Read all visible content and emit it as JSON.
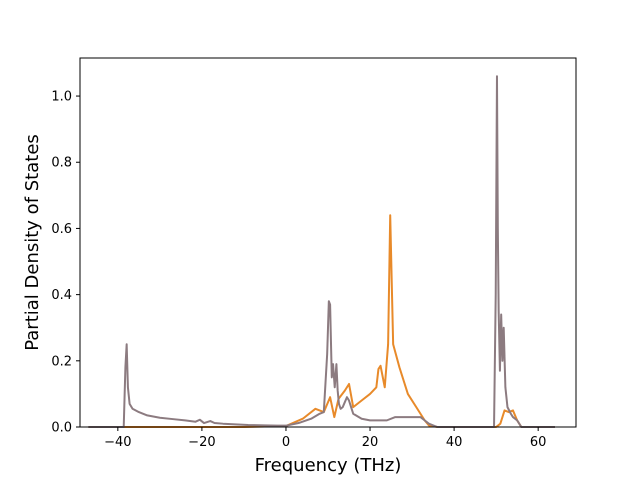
{
  "chart_data": {
    "type": "line",
    "title": "",
    "xlabel": "Frequency (THz)",
    "ylabel": "Partial Density of States",
    "xlim": [
      -49,
      69
    ],
    "ylim": [
      0.0,
      1.115
    ],
    "xticks": [
      -40,
      -20,
      0,
      20,
      40,
      60
    ],
    "yticks": [
      0.0,
      0.2,
      0.4,
      0.6,
      0.8,
      1.0
    ],
    "xtick_labels": [
      "−40",
      "−20",
      "0",
      "20",
      "40",
      "60"
    ],
    "ytick_labels": [
      "0.0",
      "0.2",
      "0.4",
      "0.6",
      "0.8",
      "1.0"
    ],
    "grid": false,
    "legend": null,
    "series": [
      {
        "color": "#e88a2a",
        "x": [
          -47,
          -38,
          -30,
          -20,
          -10,
          0,
          4,
          7,
          9,
          10.5,
          11.5,
          12.5,
          14,
          15,
          16,
          18,
          20,
          21.5,
          22,
          22.5,
          23.5,
          24.3,
          24.8,
          25.5,
          27,
          29,
          31,
          33,
          34,
          36,
          40,
          45,
          50,
          51,
          52,
          53,
          54,
          55,
          56,
          64
        ],
        "y": [
          0,
          0,
          0,
          0,
          0,
          0.003,
          0.025,
          0.055,
          0.045,
          0.09,
          0.03,
          0.085,
          0.11,
          0.13,
          0.06,
          0.08,
          0.1,
          0.12,
          0.175,
          0.185,
          0.12,
          0.25,
          0.64,
          0.25,
          0.18,
          0.1,
          0.06,
          0.02,
          0.005,
          0.0,
          0.0,
          0.0,
          0.0,
          0.01,
          0.05,
          0.045,
          0.05,
          0.02,
          0.0,
          0.0
        ]
      },
      {
        "color": "#8c7b80",
        "x": [
          -47,
          -38.6,
          -38.2,
          -37.9,
          -37.6,
          -37.2,
          -36.5,
          -35,
          -33,
          -30,
          -27,
          -24,
          -21.5,
          -20.5,
          -19.5,
          -18,
          -17,
          -15,
          -12,
          -9,
          -5,
          -2,
          0,
          3,
          6,
          8,
          9,
          9.8,
          10.2,
          10.5,
          10.9,
          11.2,
          11.6,
          12,
          12.3,
          12.6,
          13,
          13.5,
          14,
          14.5,
          15,
          15.5,
          16,
          18,
          20,
          22,
          24,
          26,
          28,
          30,
          32,
          33,
          34,
          36,
          40,
          45,
          49.5,
          49.9,
          50.2,
          50.4,
          50.6,
          50.9,
          51.2,
          51.5,
          51.8,
          52.2,
          52.7,
          53.5,
          54,
          55,
          56,
          64
        ],
        "y": [
          0,
          0,
          0.18,
          0.25,
          0.12,
          0.07,
          0.055,
          0.045,
          0.035,
          0.028,
          0.024,
          0.02,
          0.016,
          0.022,
          0.012,
          0.018,
          0.012,
          0.01,
          0.008,
          0.006,
          0.005,
          0.004,
          0.004,
          0.012,
          0.025,
          0.04,
          0.045,
          0.22,
          0.38,
          0.37,
          0.15,
          0.19,
          0.12,
          0.19,
          0.11,
          0.07,
          0.055,
          0.06,
          0.075,
          0.09,
          0.08,
          0.06,
          0.04,
          0.025,
          0.02,
          0.02,
          0.02,
          0.03,
          0.03,
          0.03,
          0.03,
          0.02,
          0.01,
          0.0,
          0.0,
          0.0,
          0.0,
          0.4,
          1.06,
          0.6,
          0.35,
          0.17,
          0.34,
          0.2,
          0.3,
          0.12,
          0.06,
          0.04,
          0.03,
          0.02,
          0.0,
          0.0
        ]
      }
    ]
  }
}
